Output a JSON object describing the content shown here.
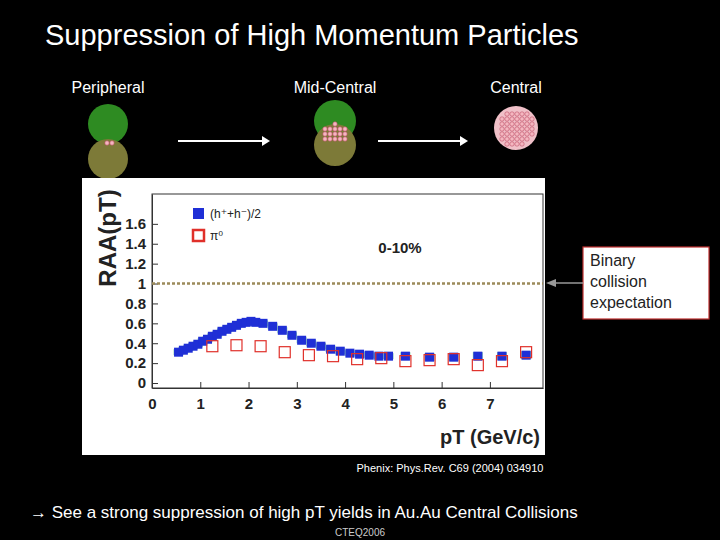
{
  "chart_data": {
    "type": "scatter",
    "title": "Suppression of High Momentum Particles",
    "x_label": "pT (GeV/c)",
    "y_label": "RAA(pT)",
    "xlim": [
      0,
      8.1
    ],
    "xticks": [
      0,
      1,
      2,
      3,
      4,
      5,
      6,
      7
    ],
    "ylim": [
      -0.05,
      1.9
    ],
    "yticks": [
      0,
      0.2,
      0.4,
      0.6,
      0.8,
      1,
      1.2,
      1.4,
      1.6
    ],
    "reference_value": 1,
    "legend": "top left",
    "grid": false,
    "series": [
      {
        "name": "(h⁺+h⁻)/2",
        "color": "#1f2fd6",
        "marker": "square",
        "x": [
          0.55,
          0.65,
          0.75,
          0.85,
          0.95,
          1.05,
          1.15,
          1.25,
          1.35,
          1.45,
          1.55,
          1.65,
          1.75,
          1.85,
          1.95,
          2.05,
          2.15,
          2.3,
          2.5,
          2.7,
          2.9,
          3.1,
          3.3,
          3.5,
          3.7,
          3.9,
          4.1,
          4.3,
          4.5,
          4.7,
          4.9,
          5.25,
          5.75,
          6.25,
          6.75,
          7.25,
          7.75
        ],
        "values": [
          0.31,
          0.33,
          0.35,
          0.37,
          0.39,
          0.42,
          0.44,
          0.47,
          0.49,
          0.52,
          0.54,
          0.56,
          0.58,
          0.6,
          0.61,
          0.62,
          0.61,
          0.6,
          0.57,
          0.53,
          0.48,
          0.43,
          0.4,
          0.37,
          0.34,
          0.32,
          0.3,
          0.29,
          0.28,
          0.27,
          0.27,
          0.27,
          0.26,
          0.26,
          0.27,
          0.27,
          0.28
        ],
        "errors": [
          0.03,
          0.03,
          0.03,
          0.03,
          0.03,
          0.03,
          0.03,
          0.03,
          0.03,
          0.03,
          0.03,
          0.03,
          0.03,
          0.03,
          0.03,
          0.03,
          0.03,
          0.03,
          0.03,
          0.03,
          0.03,
          0.03,
          0.03,
          0.03,
          0.03,
          0.03,
          0.03,
          0.03,
          0.03,
          0.03,
          0.03,
          0.04,
          0.04,
          0.04,
          0.04,
          0.04,
          0.04
        ]
      },
      {
        "name": "π⁰",
        "color": "#e0302a",
        "marker": "open-square",
        "x": [
          1.25,
          1.75,
          2.25,
          2.75,
          3.25,
          3.75,
          4.25,
          4.75,
          5.25,
          5.75,
          6.25,
          6.75,
          7.25,
          7.75
        ],
        "values": [
          0.37,
          0.38,
          0.37,
          0.31,
          0.28,
          0.27,
          0.24,
          0.25,
          0.22,
          0.23,
          0.24,
          0.18,
          0.22,
          0.31
        ]
      }
    ],
    "annotations": [
      {
        "text": "Peripheral"
      },
      {
        "text": "Mid-Central"
      },
      {
        "text": "Central"
      },
      {
        "text": "0-10%"
      },
      {
        "text": "Binary collision expectation"
      },
      {
        "text": "Phenix: Phys.Rev. C69 (2004) 034910"
      },
      {
        "text": "→ See a strong suppression of high pT yields in Au.Au Central Collisions"
      },
      {
        "text": "CTEQ2006"
      }
    ]
  }
}
